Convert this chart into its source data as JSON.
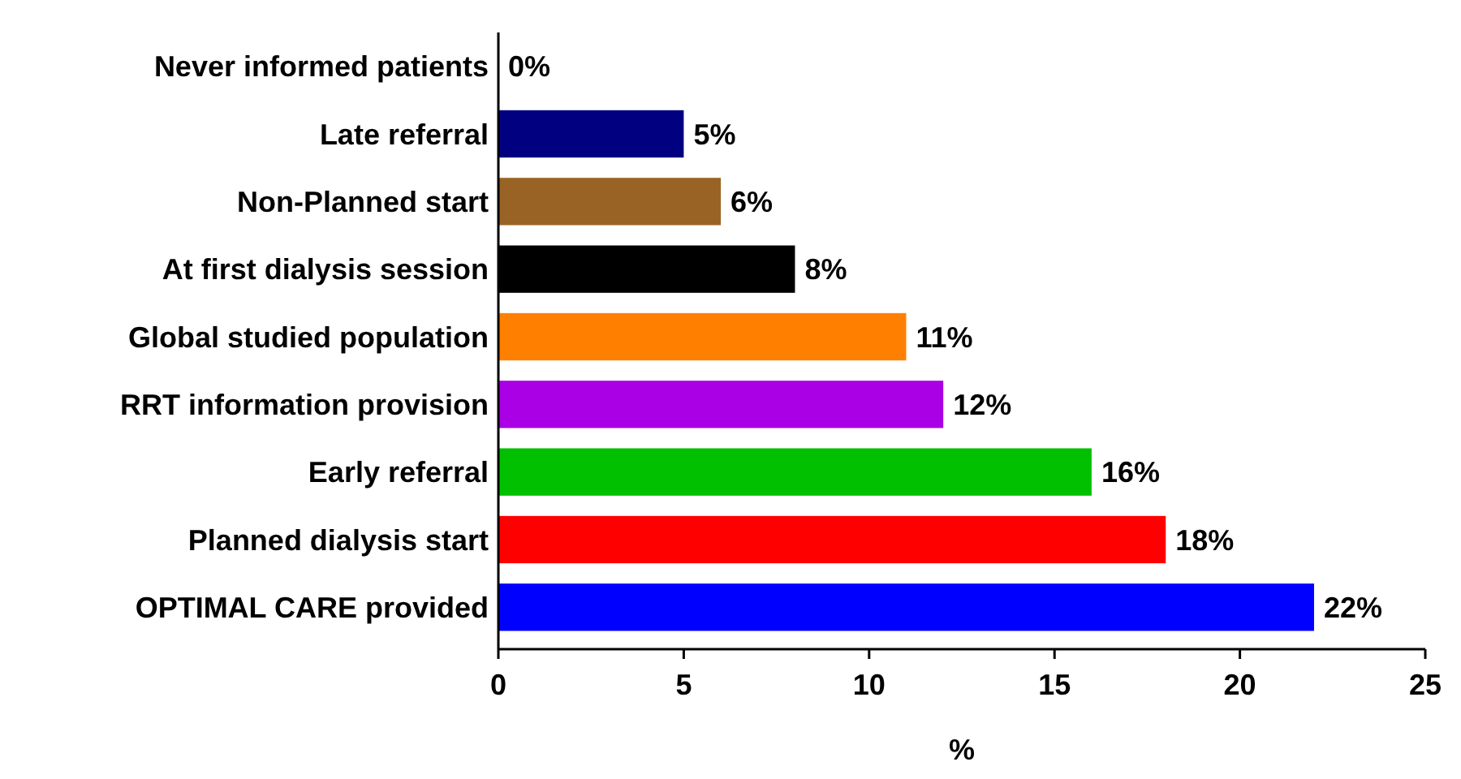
{
  "chart_data": {
    "type": "bar",
    "orientation": "horizontal",
    "xlabel": "%",
    "categories": [
      "Never informed patients",
      "Late referral",
      "Non-Planned start",
      "At first dialysis session",
      "Global studied population",
      "RRT information provision",
      "Early referral",
      "Planned dialysis start",
      "OPTIMAL CARE provided"
    ],
    "values": [
      0,
      5,
      6,
      8,
      11,
      12,
      16,
      18,
      22
    ],
    "colors": [
      "#ffffff",
      "#000080",
      "#996326",
      "#000000",
      "#ff8000",
      "#aa00e6",
      "#00c000",
      "#ff0000",
      "#0000ff"
    ],
    "value_labels": [
      "0%",
      "5%",
      "6%",
      "8%",
      "11%",
      "12%",
      "16%",
      "18%",
      "22%"
    ],
    "xlim": [
      0,
      25
    ],
    "xticks": [
      0,
      5,
      10,
      15,
      20,
      25
    ],
    "grid": false
  }
}
